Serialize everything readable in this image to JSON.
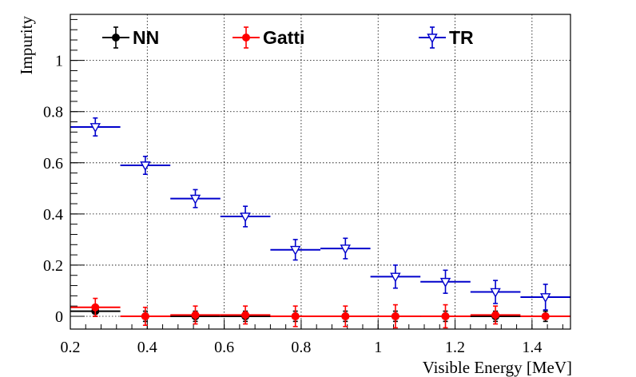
{
  "chart_data": {
    "type": "scatter",
    "xlabel": "Visible Energy [MeV]",
    "ylabel": "Impurity",
    "xlim": [
      0.2,
      1.5
    ],
    "ylim": [
      -0.05,
      1.18
    ],
    "grid": true,
    "legend_position": "top",
    "x_ticks": [
      "0.2",
      "0.4",
      "0.6",
      "0.8",
      "1",
      "1.2",
      "1.4"
    ],
    "x_tick_values": [
      0.2,
      0.4,
      0.6,
      0.8,
      1.0,
      1.2,
      1.4
    ],
    "y_ticks": [
      "0",
      "0.2",
      "0.4",
      "0.6",
      "0.8",
      "1"
    ],
    "y_tick_values": [
      0,
      0.2,
      0.4,
      0.6,
      0.8,
      1.0
    ],
    "bin_edges": [
      0.2,
      0.33,
      0.46,
      0.59,
      0.72,
      0.85,
      0.98,
      1.11,
      1.24,
      1.37,
      1.5
    ],
    "series": [
      {
        "name": "NN",
        "color": "#000000",
        "marker": "circle-filled",
        "x": [
          0.265,
          0.395,
          0.525,
          0.655,
          0.785,
          0.915,
          1.045,
          1.175,
          1.305,
          1.435
        ],
        "values": [
          0.02,
          0.0,
          0.0,
          0.0,
          0.0,
          0.0,
          0.0,
          0.0,
          0.0,
          0.0
        ],
        "errors": [
          0.02,
          0.02,
          0.02,
          0.02,
          0.02,
          0.02,
          0.02,
          0.02,
          0.02,
          0.02
        ]
      },
      {
        "name": "Gatti",
        "color": "#ff0000",
        "marker": "circle-filled",
        "x": [
          0.265,
          0.395,
          0.525,
          0.655,
          0.785,
          0.915,
          1.045,
          1.175,
          1.305,
          1.435
        ],
        "values": [
          0.035,
          0.0,
          0.005,
          0.005,
          0.0,
          0.0,
          0.0,
          0.0,
          0.005,
          0.0
        ],
        "errors": [
          0.035,
          0.035,
          0.035,
          0.035,
          0.04,
          0.04,
          0.045,
          0.045,
          0.035,
          0.0
        ]
      },
      {
        "name": "TR",
        "color": "#0000cc",
        "marker": "triangle-down-open",
        "x": [
          0.265,
          0.395,
          0.525,
          0.655,
          0.785,
          0.915,
          1.045,
          1.175,
          1.305,
          1.435
        ],
        "values": [
          0.74,
          0.59,
          0.46,
          0.39,
          0.26,
          0.265,
          0.155,
          0.135,
          0.095,
          0.075
        ],
        "errors": [
          0.035,
          0.035,
          0.035,
          0.04,
          0.04,
          0.04,
          0.045,
          0.045,
          0.045,
          0.05
        ]
      }
    ]
  }
}
